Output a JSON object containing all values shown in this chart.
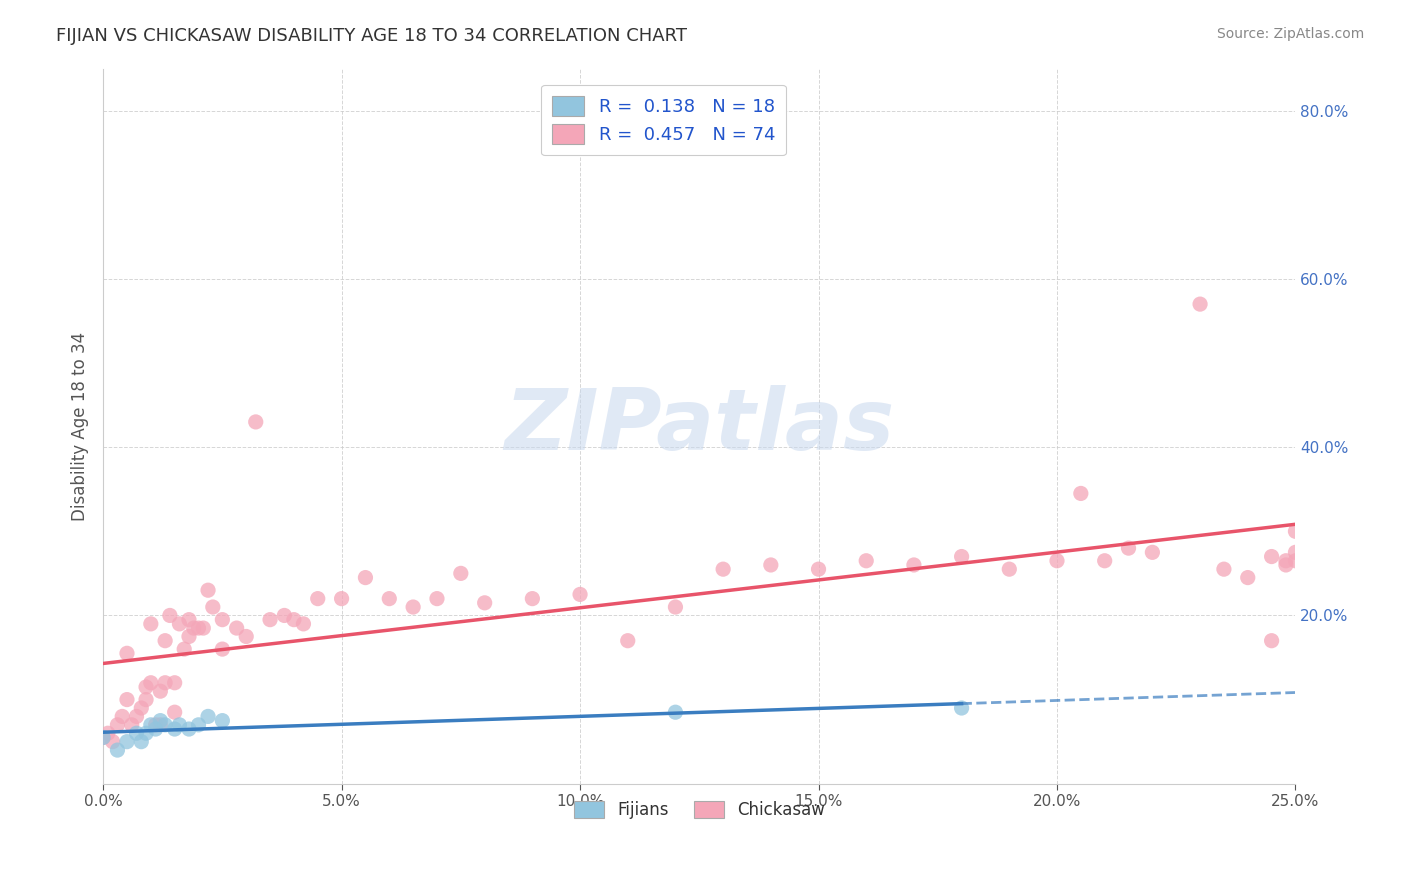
{
  "title": "FIJIAN VS CHICKASAW DISABILITY AGE 18 TO 34 CORRELATION CHART",
  "source": "Source: ZipAtlas.com",
  "ylabel": "Disability Age 18 to 34",
  "xmin": 0.0,
  "xmax": 0.25,
  "ymin": 0.0,
  "ymax": 0.85,
  "xtick_vals": [
    0.0,
    0.05,
    0.1,
    0.15,
    0.2,
    0.25
  ],
  "ytick_vals": [
    0.2,
    0.4,
    0.6,
    0.8
  ],
  "fijian_color": "#92c5de",
  "chickasaw_color": "#f4a6b8",
  "fijian_line_color": "#3a7dc0",
  "chickasaw_line_color": "#e8546a",
  "watermark_text": "ZIPatlas",
  "background_color": "#ffffff",
  "grid_color": "#cccccc",
  "fijian_scatter_x": [
    0.0,
    0.003,
    0.005,
    0.007,
    0.008,
    0.009,
    0.01,
    0.011,
    0.012,
    0.013,
    0.015,
    0.016,
    0.018,
    0.02,
    0.022,
    0.025,
    0.12,
    0.18
  ],
  "fijian_scatter_y": [
    0.055,
    0.04,
    0.05,
    0.06,
    0.05,
    0.06,
    0.07,
    0.065,
    0.075,
    0.07,
    0.065,
    0.07,
    0.065,
    0.07,
    0.08,
    0.075,
    0.085,
    0.09
  ],
  "chickasaw_scatter_x": [
    0.0,
    0.001,
    0.002,
    0.003,
    0.004,
    0.005,
    0.005,
    0.006,
    0.007,
    0.008,
    0.009,
    0.009,
    0.01,
    0.01,
    0.011,
    0.012,
    0.012,
    0.013,
    0.013,
    0.014,
    0.015,
    0.015,
    0.016,
    0.017,
    0.018,
    0.018,
    0.019,
    0.02,
    0.021,
    0.022,
    0.023,
    0.025,
    0.025,
    0.028,
    0.03,
    0.032,
    0.035,
    0.038,
    0.04,
    0.042,
    0.045,
    0.05,
    0.055,
    0.06,
    0.065,
    0.07,
    0.075,
    0.08,
    0.09,
    0.1,
    0.11,
    0.12,
    0.13,
    0.14,
    0.15,
    0.16,
    0.17,
    0.18,
    0.19,
    0.2,
    0.205,
    0.21,
    0.215,
    0.22,
    0.23,
    0.235,
    0.24,
    0.245,
    0.248,
    0.25,
    0.25,
    0.25,
    0.248,
    0.245
  ],
  "chickasaw_scatter_y": [
    0.055,
    0.06,
    0.05,
    0.07,
    0.08,
    0.1,
    0.155,
    0.07,
    0.08,
    0.09,
    0.1,
    0.115,
    0.12,
    0.19,
    0.07,
    0.07,
    0.11,
    0.12,
    0.17,
    0.2,
    0.085,
    0.12,
    0.19,
    0.16,
    0.175,
    0.195,
    0.185,
    0.185,
    0.185,
    0.23,
    0.21,
    0.16,
    0.195,
    0.185,
    0.175,
    0.43,
    0.195,
    0.2,
    0.195,
    0.19,
    0.22,
    0.22,
    0.245,
    0.22,
    0.21,
    0.22,
    0.25,
    0.215,
    0.22,
    0.225,
    0.17,
    0.21,
    0.255,
    0.26,
    0.255,
    0.265,
    0.26,
    0.27,
    0.255,
    0.265,
    0.345,
    0.265,
    0.28,
    0.275,
    0.57,
    0.255,
    0.245,
    0.27,
    0.26,
    0.265,
    0.3,
    0.275,
    0.265,
    0.17
  ]
}
